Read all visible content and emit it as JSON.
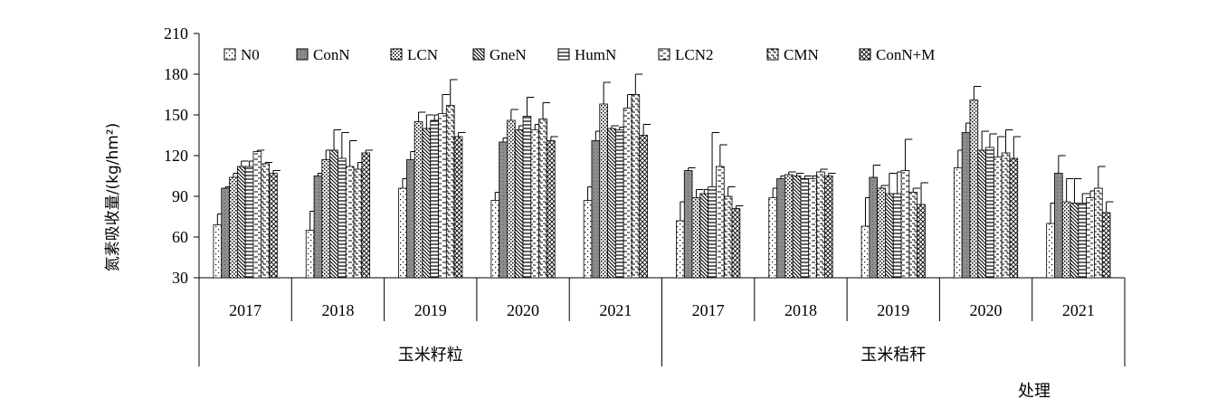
{
  "chart_data": {
    "type": "bar",
    "ylabel": "氮素吸收量/(kg/hm²)",
    "xlabel": "处理",
    "ylim": [
      30,
      210
    ],
    "yticks": [
      30,
      60,
      90,
      120,
      150,
      180,
      210
    ],
    "grid": false,
    "legend_position": "top",
    "groups": [
      {
        "label": "玉米籽粒",
        "categories": [
          "2017",
          "2018",
          "2019",
          "2020",
          "2021"
        ]
      },
      {
        "label": "玉米秸秆",
        "categories": [
          "2017",
          "2018",
          "2019",
          "2020",
          "2021"
        ]
      }
    ],
    "series": [
      {
        "name": "N0",
        "pattern": "dots",
        "values": [
          69,
          65,
          96,
          87,
          87,
          72,
          89,
          68,
          111,
          70
        ],
        "errors": [
          8,
          14,
          7,
          6,
          10,
          14,
          7,
          21,
          13,
          15
        ]
      },
      {
        "name": "ConN",
        "pattern": "gray",
        "values": [
          96,
          105,
          117,
          130,
          131,
          109,
          103,
          104,
          137,
          107
        ],
        "errors": [
          1,
          2,
          6,
          3,
          7,
          2,
          2,
          9,
          7,
          13
        ]
      },
      {
        "name": "LCN",
        "pattern": "dense-dots",
        "values": [
          104,
          117,
          145,
          146,
          158,
          89,
          106,
          96,
          161,
          86
        ],
        "errors": [
          3,
          7,
          7,
          8,
          16,
          6,
          2,
          2,
          10,
          17
        ]
      },
      {
        "name": "GneN",
        "pattern": "diagonal",
        "values": [
          112,
          124,
          140,
          139,
          140,
          92,
          105,
          92,
          124,
          85
        ],
        "errors": [
          4,
          15,
          10,
          3,
          2,
          3,
          2,
          15,
          14,
          18
        ]
      },
      {
        "name": "HumN",
        "pattern": "horizontal",
        "values": [
          112,
          118,
          146,
          149,
          139,
          97,
          103,
          92,
          126,
          85
        ],
        "errors": [
          4,
          19,
          4,
          14,
          2,
          40,
          2,
          16,
          10,
          7
        ]
      },
      {
        "name": "LCN2",
        "pattern": "dashes",
        "values": [
          123,
          112,
          151,
          139,
          155,
          112,
          103,
          109,
          119,
          89
        ],
        "errors": [
          1,
          19,
          14,
          4,
          10,
          16,
          2,
          23,
          15,
          5
        ]
      },
      {
        "name": "CMN",
        "pattern": "bricks",
        "values": [
          114,
          110,
          157,
          147,
          165,
          90,
          108,
          93,
          122,
          96
        ],
        "errors": [
          1,
          5,
          19,
          12,
          15,
          7,
          2,
          3,
          17,
          16
        ]
      },
      {
        "name": "ConN+M",
        "pattern": "crosshatch",
        "values": [
          107,
          122,
          134,
          131,
          135,
          81,
          105,
          84,
          118,
          78
        ],
        "errors": [
          2,
          2,
          3,
          3,
          8,
          2,
          2,
          16,
          16,
          8
        ]
      }
    ]
  }
}
